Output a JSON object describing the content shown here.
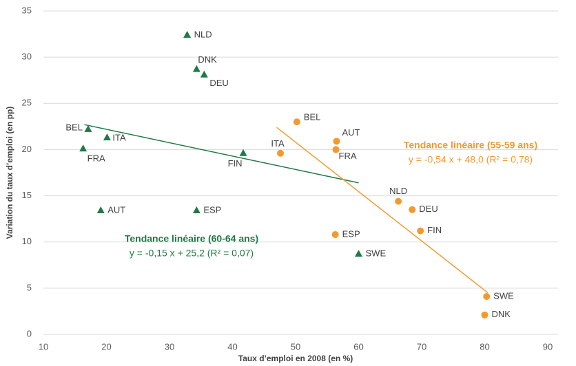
{
  "chart_data": {
    "type": "scatter",
    "xlabel": "Taux d’emploi en 2008 (en %)",
    "ylabel": "Variation du taux d’emploi  (en pp)",
    "xlim": [
      10,
      90
    ],
    "xticks": [
      10,
      20,
      30,
      40,
      50,
      60,
      70,
      80,
      90
    ],
    "ylim": [
      0,
      35
    ],
    "yticks": [
      0,
      5,
      10,
      15,
      20,
      25,
      30,
      35
    ],
    "grid": true,
    "series": [
      {
        "name": "60-64 ans",
        "color": "#1f7a45",
        "marker": "triangle",
        "labels": [
          "NLD",
          "DNK",
          "DEU",
          "BEL",
          "ITA",
          "FRA",
          "FIN",
          "AUT",
          "ESP",
          "SWE"
        ],
        "x": [
          32.8,
          34.3,
          35.5,
          17.1,
          20.1,
          16.3,
          41.7,
          19.1,
          34.3,
          60.0
        ],
        "values": [
          32.4,
          28.7,
          28.1,
          22.2,
          21.3,
          20.1,
          19.6,
          13.4,
          13.4,
          8.7
        ]
      },
      {
        "name": "55-59 ans",
        "color": "#f39a2e",
        "marker": "circle",
        "labels": [
          "BEL",
          "ITA",
          "AUT",
          "FRA",
          "NLD",
          "DEU",
          "FIN",
          "ESP",
          "SWE",
          "DNK"
        ],
        "x": [
          50.2,
          47.6,
          56.5,
          56.4,
          66.3,
          68.5,
          69.8,
          56.3,
          80.3,
          80.0
        ],
        "values": [
          23.0,
          19.6,
          20.9,
          20.0,
          14.4,
          13.5,
          11.2,
          10.8,
          4.1,
          2.1
        ]
      }
    ],
    "trendlines": [
      {
        "color": "#1f7a45",
        "title": "Tendance linéaire (60-64 ans)",
        "equation": "y = -0,15 x + 25,2 (R² = 0,07)",
        "x": [
          16.5,
          60.0
        ],
        "values": [
          22.7,
          16.4
        ]
      },
      {
        "color": "#f39a2e",
        "title": "Tendance linéaire (55-59 ans)",
        "equation": "y = -0,54 x + 48,0 (R² = 0,78)",
        "x": [
          47.0,
          80.5
        ],
        "values": [
          22.4,
          4.5
        ]
      }
    ]
  }
}
